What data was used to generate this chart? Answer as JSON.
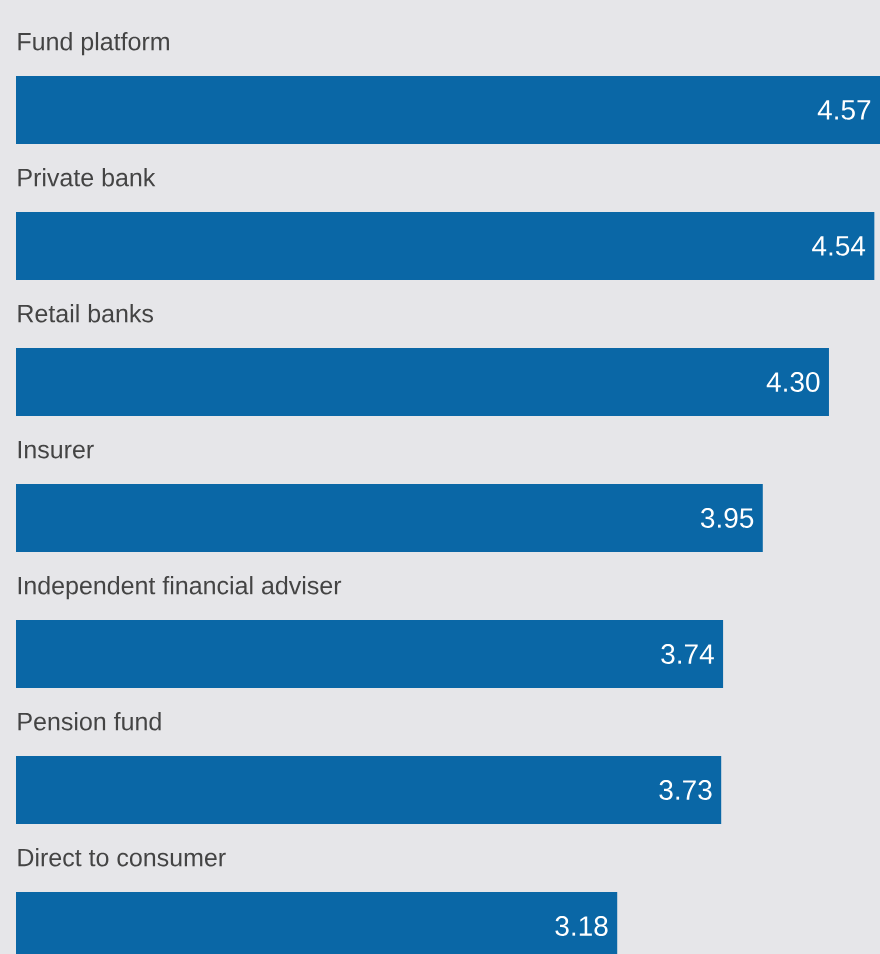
{
  "chart_data": {
    "type": "bar",
    "orientation": "horizontal",
    "categories": [
      "Fund platform",
      "Private bank",
      "Retail banks",
      "Insurer",
      "Independent financial adviser",
      "Pension fund",
      "Direct to consumer"
    ],
    "values": [
      4.57,
      4.54,
      4.3,
      3.95,
      3.74,
      3.73,
      3.18
    ],
    "color": "#0a67a6",
    "value_labels": [
      "4.57",
      "4.54",
      "4.30",
      "3.95",
      "3.74",
      "3.73",
      "3.18"
    ]
  }
}
